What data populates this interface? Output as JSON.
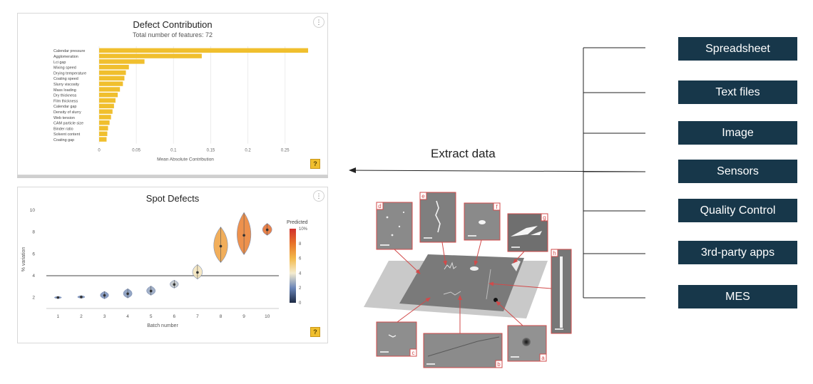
{
  "defect_contribution": {
    "title": "Defect Contribution",
    "subtitle": "Total number of features: 72",
    "menu_glyph": "⋮",
    "help_label": "?",
    "chart_data": {
      "type": "bar",
      "orientation": "horizontal",
      "title": "Defect Contribution",
      "xlabel": "Mean Absolute Contribution",
      "ylabel": "",
      "xlim": [
        0,
        0.28
      ],
      "xticks": [
        0,
        0.05,
        0.1,
        0.15,
        0.2,
        0.25
      ],
      "xtick_labels": [
        "0",
        "0.05",
        "0.1",
        "0.15",
        "0.2",
        "0.25"
      ],
      "categories": [
        "Calendar pressure",
        "Agglomeration",
        "Lci gap",
        "Mixing speed",
        "Drying temperature",
        "Coating speed",
        "Slurry viscosity",
        "Mass loading",
        "Dry thickness",
        "Film thickness",
        "Calendar gap",
        "Density of slurry",
        "Web tension",
        "CAM particle size",
        "Binder ratio",
        "Solvent content",
        "Coating gap"
      ],
      "values": [
        0.281,
        0.138,
        0.061,
        0.04,
        0.036,
        0.034,
        0.032,
        0.028,
        0.025,
        0.022,
        0.02,
        0.018,
        0.016,
        0.014,
        0.012,
        0.011,
        0.01
      ],
      "color": "#f0bf2e"
    }
  },
  "spot_defects": {
    "title": "Spot Defects",
    "menu_glyph": "⋮",
    "help_label": "?",
    "chart_data": {
      "type": "violin",
      "title": "Spot Defects",
      "xlabel": "Batch number",
      "ylabel": "% variation",
      "ylim": [
        1,
        10
      ],
      "yticks": [
        2,
        4,
        6,
        8,
        10
      ],
      "x": [
        1,
        2,
        3,
        4,
        5,
        6,
        7,
        8,
        9,
        10
      ],
      "medians": [
        2.0,
        2.05,
        2.2,
        2.35,
        2.6,
        3.2,
        4.3,
        6.7,
        7.7,
        8.2
      ],
      "spreads": [
        0.08,
        0.1,
        0.28,
        0.35,
        0.35,
        0.3,
        0.55,
        1.35,
        1.6,
        0.45
      ],
      "threshold": 4,
      "colorbar": {
        "label": "Predicted",
        "ticks": [
          0,
          2,
          4,
          6,
          8,
          10
        ],
        "tick_labels": [
          "0",
          "2",
          "4",
          "6",
          "8",
          "10%"
        ],
        "colors": [
          "#1c2a44",
          "#6a85b8",
          "#f4eccf",
          "#f3b94a",
          "#e8742a",
          "#d0312d"
        ]
      }
    }
  },
  "extract_label": "Extract data",
  "sources": [
    {
      "label": "Spreadsheet"
    },
    {
      "label": "Text files"
    },
    {
      "label": "Image"
    },
    {
      "label": "Sensors"
    },
    {
      "label": "Quality Control"
    },
    {
      "label": "3rd-party apps"
    },
    {
      "label": "MES"
    }
  ],
  "defect_image_labels": [
    "a",
    "b",
    "c",
    "d",
    "e",
    "f",
    "g",
    "h"
  ],
  "colors": {
    "source_box": "#17374a",
    "accent_red": "#d24a4a",
    "bar": "#f0bf2e"
  }
}
